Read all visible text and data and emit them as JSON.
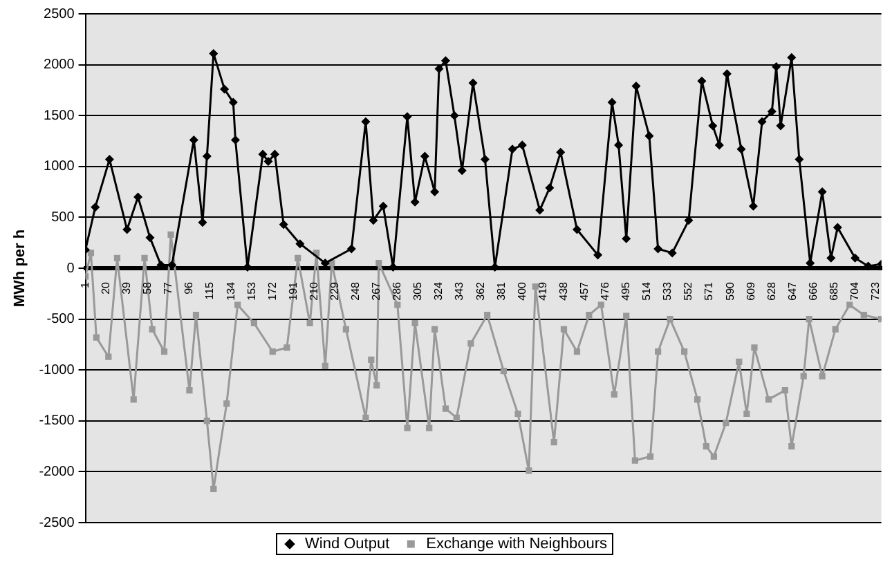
{
  "chart_data": {
    "type": "line",
    "ylabel": "MWh per h",
    "xlim": [
      1,
      728
    ],
    "xticks": [
      1,
      20,
      39,
      58,
      77,
      96,
      115,
      134,
      153,
      172,
      191,
      210,
      229,
      248,
      267,
      286,
      305,
      324,
      343,
      362,
      381,
      400,
      419,
      438,
      457,
      476,
      495,
      514,
      533,
      552,
      571,
      590,
      609,
      628,
      647,
      666,
      685,
      704,
      723
    ],
    "ylim": [
      -2500,
      2500
    ],
    "yticks": [
      -2500,
      -2000,
      -1500,
      -1000,
      -500,
      0,
      500,
      1000,
      1500,
      2000,
      2500
    ],
    "grid": "y",
    "legend": "bottom",
    "series": [
      {
        "name": "Wind Output",
        "color": "#000000",
        "marker": "diamond",
        "x": [
          1,
          10,
          23,
          39,
          49,
          60,
          70,
          80,
          100,
          108,
          112,
          118,
          128,
          136,
          138,
          149,
          163,
          168,
          174,
          182,
          197,
          220,
          244,
          257,
          264,
          273,
          282,
          295,
          302,
          311,
          320,
          324,
          330,
          338,
          345,
          355,
          366,
          375,
          391,
          400,
          416,
          425,
          435,
          450,
          469,
          482,
          488,
          495,
          504,
          516,
          524,
          537,
          552,
          564,
          574,
          580,
          587,
          600,
          611,
          619,
          628,
          632,
          636,
          646,
          653,
          663,
          674,
          682,
          688,
          704,
          716,
          728
        ],
        "values": [
          180,
          600,
          1070,
          380,
          700,
          300,
          30,
          30,
          1260,
          450,
          1100,
          2110,
          1760,
          1630,
          1260,
          10,
          1120,
          1050,
          1120,
          430,
          240,
          50,
          190,
          1440,
          470,
          610,
          10,
          1490,
          650,
          1100,
          750,
          1960,
          2040,
          1500,
          960,
          1820,
          1070,
          10,
          1170,
          1210,
          570,
          790,
          1140,
          380,
          130,
          1630,
          1210,
          290,
          1790,
          1300,
          190,
          150,
          470,
          1840,
          1400,
          1210,
          1910,
          1170,
          610,
          1440,
          1540,
          1980,
          1400,
          2070,
          1070,
          50,
          750,
          100,
          400,
          100,
          20,
          40
        ]
      },
      {
        "name": "Exchange with Neighbours",
        "color": "#999999",
        "marker": "square",
        "x": [
          1,
          6,
          11,
          22,
          30,
          45,
          55,
          62,
          73,
          79,
          96,
          102,
          112,
          118,
          130,
          140,
          155,
          172,
          185,
          195,
          206,
          212,
          220,
          226,
          239,
          257,
          262,
          267,
          269,
          286,
          295,
          302,
          315,
          320,
          330,
          340,
          353,
          368,
          383,
          396,
          406,
          412,
          429,
          438,
          450,
          461,
          472,
          484,
          495,
          503,
          517,
          524,
          535,
          548,
          560,
          568,
          575,
          586,
          598,
          605,
          612,
          625,
          640,
          646,
          657,
          662,
          674,
          686,
          699,
          712,
          728
        ],
        "values": [
          -80,
          150,
          -680,
          -870,
          100,
          -1290,
          100,
          -600,
          -820,
          330,
          -1200,
          -460,
          -1500,
          -2170,
          -1330,
          -360,
          -540,
          -820,
          -780,
          100,
          -540,
          150,
          -960,
          50,
          -600,
          -1470,
          -900,
          -1150,
          50,
          -360,
          -1570,
          -540,
          -1570,
          -600,
          -1380,
          -1470,
          -740,
          -460,
          -1010,
          -1430,
          -1990,
          -180,
          -1710,
          -600,
          -820,
          -460,
          -360,
          -1240,
          -470,
          -1890,
          -1850,
          -820,
          -500,
          -820,
          -1290,
          -1750,
          -1850,
          -1520,
          -920,
          -1430,
          -780,
          -1290,
          -1200,
          -1750,
          -1060,
          -500,
          -1060,
          -600,
          -360,
          -460,
          -500
        ]
      }
    ]
  }
}
